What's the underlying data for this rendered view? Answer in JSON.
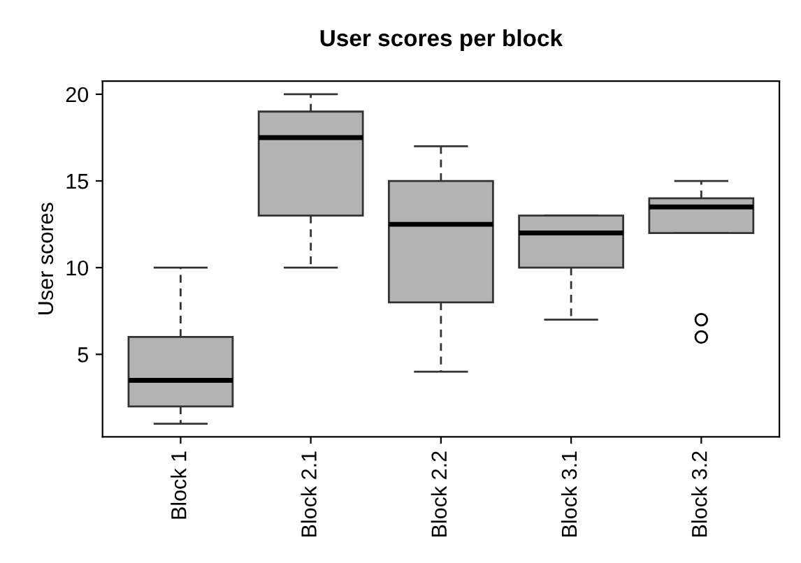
{
  "chart_data": {
    "type": "box",
    "title": "User scores per block",
    "ylabel": "User scores",
    "categories": [
      "Block 1",
      "Block 2.1",
      "Block 2.2",
      "Block 3.1",
      "Block 3.2"
    ],
    "color": "#b3b3b3",
    "ylim": [
      0.24,
      20.76
    ],
    "yticks": [
      5,
      10,
      15,
      20
    ],
    "grid": false,
    "legend": false,
    "boxes": [
      {
        "low": 1,
        "q1": 2,
        "median": 3.5,
        "q3": 6,
        "high": 10
      },
      {
        "low": 10,
        "q1": 13,
        "median": 17.5,
        "q3": 19,
        "high": 20
      },
      {
        "low": 4,
        "q1": 8,
        "median": 12.5,
        "q3": 15,
        "high": 17
      },
      {
        "low": 7,
        "q1": 10,
        "median": 12,
        "q3": 13,
        "high": 13
      },
      {
        "low": 12,
        "q1": 12,
        "median": 13.5,
        "q3": 14,
        "high": 15,
        "outliers": [
          7,
          6
        ]
      }
    ]
  }
}
